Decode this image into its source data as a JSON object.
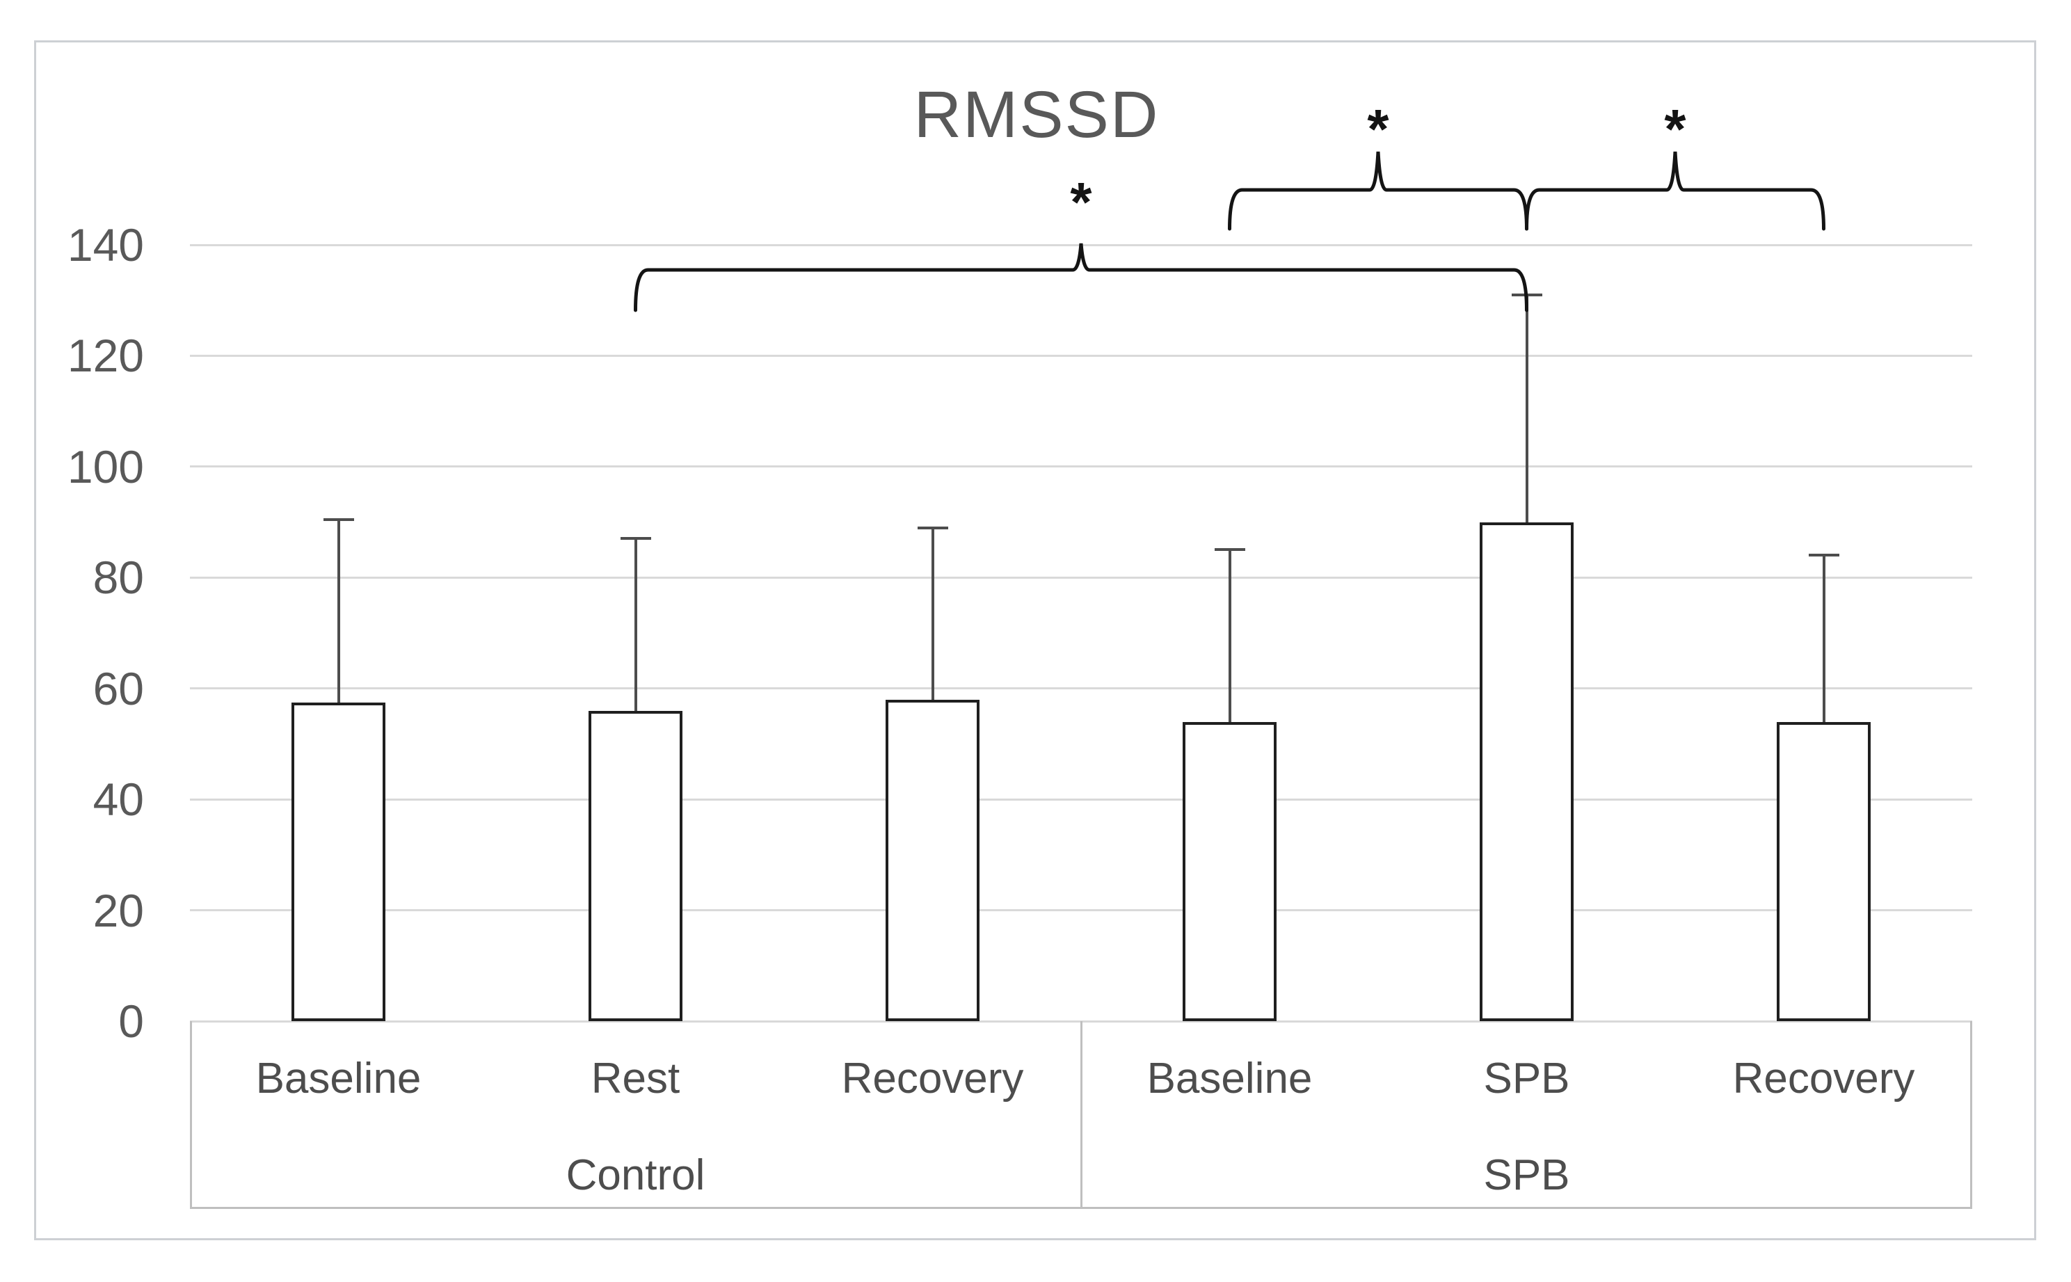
{
  "chart_data": {
    "type": "bar",
    "title": "RMSSD",
    "xlabel": "",
    "ylabel": "",
    "ylim": [
      0,
      140
    ],
    "y_ticks": [
      0,
      20,
      40,
      60,
      80,
      100,
      120,
      140
    ],
    "grid": true,
    "legend": false,
    "groups": [
      {
        "label": "Control",
        "categories": [
          "Baseline",
          "Rest",
          "Recovery"
        ]
      },
      {
        "label": "SPB",
        "categories": [
          "Baseline",
          "SPB",
          "Recovery"
        ]
      }
    ],
    "series": [
      {
        "name": "RMSSD",
        "values": [
          57.5,
          56,
          58,
          54,
          90,
          54
        ],
        "error_upper": [
          33,
          31,
          31,
          31,
          41,
          30
        ]
      }
    ],
    "significance_brackets": [
      {
        "from_bar": 2,
        "to_bar": 5,
        "label": "*",
        "level": 1
      },
      {
        "from_bar": 4,
        "to_bar": 5,
        "label": "*",
        "level": 2
      },
      {
        "from_bar": 5,
        "to_bar": 6,
        "label": "*",
        "level": 2
      }
    ],
    "colors": {
      "bar_fill": "#ffffff",
      "bar_border": "#1f1f1f",
      "error_bar": "#4d4d4d",
      "gridline": "#d9d9d9",
      "axis_band_border": "#bfbfbf",
      "text": "#4d4d4d",
      "title_text": "#595959",
      "annotation": "#141414",
      "figure_border": "#cdd0d4"
    }
  }
}
